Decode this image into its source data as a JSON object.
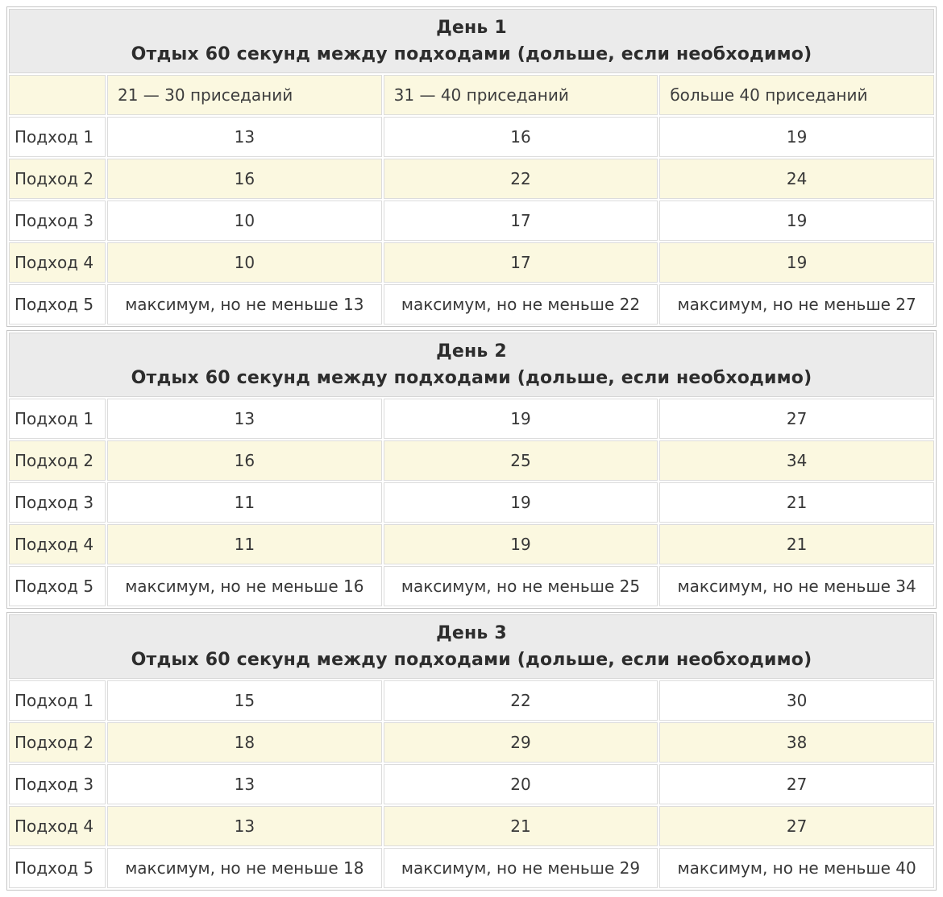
{
  "colors": {
    "day_header_bg": "#ebebeb",
    "row_alt_bg": "#fbf8e0",
    "row_bg": "#ffffff",
    "border_outer": "#c5c5c5",
    "border_inner": "#dcdcdc",
    "text": "#383838"
  },
  "columns": [
    "",
    "21 — 30 приседаний",
    "31 — 40 приседаний",
    "больше 40 приседаний"
  ],
  "days": [
    {
      "title": "День 1",
      "subtitle": "Отдых 60 секунд между подходами (дольше, если необходимо)",
      "has_column_header_row": true,
      "rows": [
        {
          "label": "Подход 1",
          "values": [
            "13",
            "16",
            "19"
          ]
        },
        {
          "label": "Подход 2",
          "values": [
            "16",
            "22",
            "24"
          ]
        },
        {
          "label": "Подход 3",
          "values": [
            "10",
            "17",
            "19"
          ]
        },
        {
          "label": "Подход 4",
          "values": [
            "10",
            "17",
            "19"
          ]
        },
        {
          "label": "Подход 5",
          "values": [
            "максимум, но не меньше 13",
            "максимум, но не меньше 22",
            "максимум, но не меньше 27"
          ]
        }
      ]
    },
    {
      "title": "День 2",
      "subtitle": "Отдых 60 секунд между подходами (дольше, если необходимо)",
      "has_column_header_row": false,
      "rows": [
        {
          "label": "Подход 1",
          "values": [
            "13",
            "19",
            "27"
          ]
        },
        {
          "label": "Подход 2",
          "values": [
            "16",
            "25",
            "34"
          ]
        },
        {
          "label": "Подход 3",
          "values": [
            "11",
            "19",
            "21"
          ]
        },
        {
          "label": "Подход 4",
          "values": [
            "11",
            "19",
            "21"
          ]
        },
        {
          "label": "Подход 5",
          "values": [
            "максимум, но не меньше 16",
            "максимум, но не меньше 25",
            "максимум, но не меньше 34"
          ]
        }
      ]
    },
    {
      "title": "День 3",
      "subtitle": "Отдых 60 секунд между подходами (дольше, если необходимо)",
      "has_column_header_row": false,
      "rows": [
        {
          "label": "Подход 1",
          "values": [
            "15",
            "22",
            "30"
          ]
        },
        {
          "label": "Подход 2",
          "values": [
            "18",
            "29",
            "38"
          ]
        },
        {
          "label": "Подход 3",
          "values": [
            "13",
            "20",
            "27"
          ]
        },
        {
          "label": "Подход 4",
          "values": [
            "13",
            "21",
            "27"
          ]
        },
        {
          "label": "Подход 5",
          "values": [
            "максимум, но не меньше 18",
            "максимум, но не меньше 29",
            "максимум, но не меньше 40"
          ]
        }
      ]
    }
  ]
}
